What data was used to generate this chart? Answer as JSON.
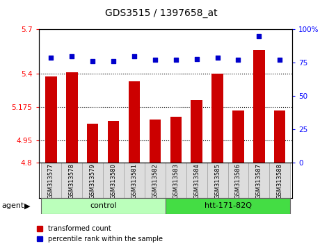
{
  "title": "GDS3515 / 1397658_at",
  "samples": [
    "GSM313577",
    "GSM313578",
    "GSM313579",
    "GSM313580",
    "GSM313581",
    "GSM313582",
    "GSM313583",
    "GSM313584",
    "GSM313585",
    "GSM313586",
    "GSM313587",
    "GSM313588"
  ],
  "red_values": [
    5.38,
    5.41,
    5.06,
    5.08,
    5.35,
    5.09,
    5.11,
    5.22,
    5.4,
    5.15,
    5.56,
    5.15
  ],
  "blue_values": [
    79,
    80,
    76,
    76,
    80,
    77,
    77,
    78,
    79,
    77,
    95,
    77
  ],
  "ylim_left": [
    4.8,
    5.7
  ],
  "ylim_right": [
    0,
    100
  ],
  "yticks_left": [
    4.8,
    4.95,
    5.175,
    5.4,
    5.7
  ],
  "yticks_right": [
    0,
    25,
    50,
    75,
    100
  ],
  "ytick_labels_left": [
    "4.8",
    "4.95",
    "5.175",
    "5.4",
    "5.7"
  ],
  "ytick_labels_right": [
    "0",
    "25",
    "50",
    "75",
    "100%"
  ],
  "hlines": [
    5.4,
    5.175,
    4.95
  ],
  "control_samples": 6,
  "control_label": "control",
  "treatment_label": "htt-171-82Q",
  "agent_label": "agent",
  "legend_red": "transformed count",
  "legend_blue": "percentile rank within the sample",
  "bar_color": "#cc0000",
  "dot_color": "#0000cc",
  "control_bg": "#bbffbb",
  "treatment_bg": "#44dd44",
  "sample_bg": "#dddddd",
  "bar_width": 0.55
}
